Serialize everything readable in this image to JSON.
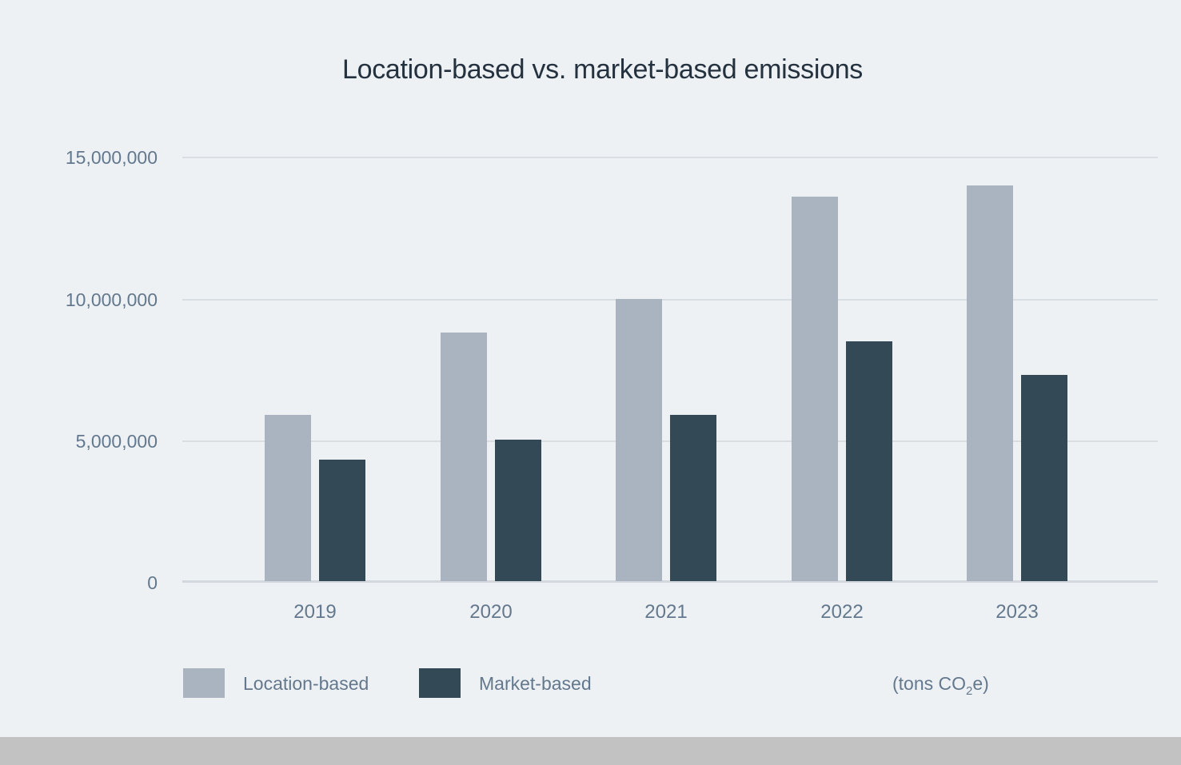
{
  "chart_data": {
    "type": "bar",
    "title": "Location-based vs. market-based emissions",
    "categories": [
      "2019",
      "2020",
      "2021",
      "2022",
      "2023"
    ],
    "series": [
      {
        "name": "Location-based",
        "color": "#aab4c0",
        "values": [
          5900000,
          8800000,
          10000000,
          13600000,
          14000000
        ]
      },
      {
        "name": "Market-based",
        "color": "#334955",
        "values": [
          4300000,
          5000000,
          5900000,
          8500000,
          7300000
        ]
      }
    ],
    "ylabel": "",
    "xlabel": "",
    "ylim": [
      0,
      15000000
    ],
    "ytick_interval": 5000000,
    "ytick_labels": [
      "0",
      "5,000,000",
      "10,000,000",
      "15,000,000"
    ],
    "grid": "horizontal",
    "legend_position": "bottom",
    "unit_note": {
      "prefix": "(tons CO",
      "sub": "2",
      "suffix": "e)"
    }
  },
  "colors": {
    "background": "#edf1f4",
    "gridline": "#d9dee3",
    "axis_line": "#d2d8dd",
    "title_text": "#24313e",
    "axis_text": "#64788d",
    "bottom_bar": "#c2c2c2"
  }
}
